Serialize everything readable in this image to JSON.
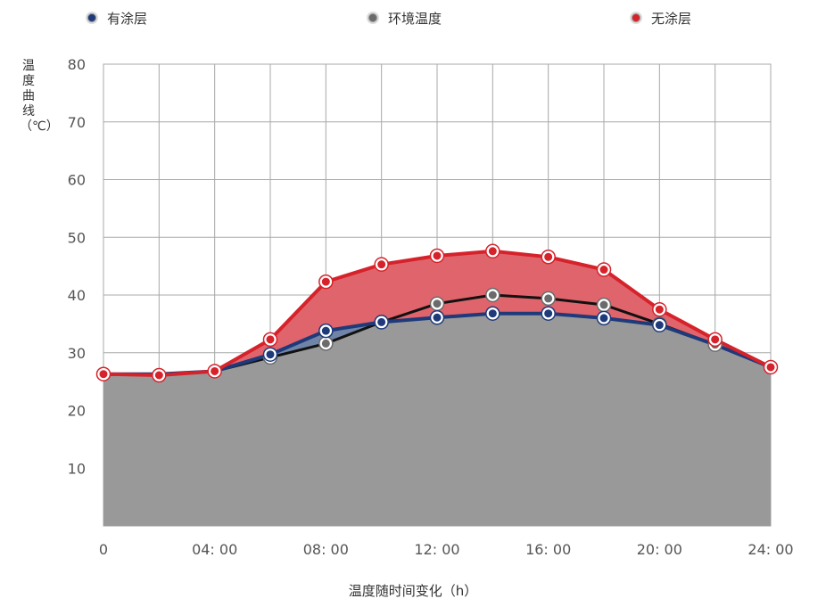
{
  "chart_data": {
    "type": "area",
    "x_ticks": [
      "0",
      "04: 00",
      "08: 00",
      "12: 00",
      "16: 00",
      "20: 00",
      "24: 00"
    ],
    "x": [
      0,
      2,
      4,
      6,
      8,
      10,
      12,
      14,
      16,
      18,
      20,
      22,
      24
    ],
    "xlim": [
      0,
      24
    ],
    "ylim": [
      0,
      80
    ],
    "y_ticks": [
      "10",
      "20",
      "30",
      "40",
      "50",
      "60",
      "70",
      "80"
    ],
    "ylabel": "温度曲线（℃）",
    "xlabel": "温度随时间变化（h）",
    "grid": true,
    "legend_position": "top",
    "series": [
      {
        "name": "有涂层",
        "color": "#1e3a7a",
        "values": [
          26.3,
          26.3,
          26.8,
          29.7,
          33.8,
          35.3,
          36.1,
          36.8,
          36.8,
          36.0,
          34.8,
          null,
          27.5
        ]
      },
      {
        "name": "环境温度",
        "color": "#6b6b6b",
        "values": [
          26.3,
          26.3,
          26.8,
          29.2,
          31.6,
          35.3,
          38.5,
          40.0,
          39.4,
          38.3,
          35.0,
          31.4,
          27.5
        ]
      },
      {
        "name": "无涂层",
        "color": "#d6222a",
        "values": [
          26.3,
          26.1,
          26.8,
          32.3,
          42.3,
          45.3,
          46.8,
          47.6,
          46.6,
          44.4,
          37.5,
          32.3,
          27.5
        ]
      }
    ]
  }
}
